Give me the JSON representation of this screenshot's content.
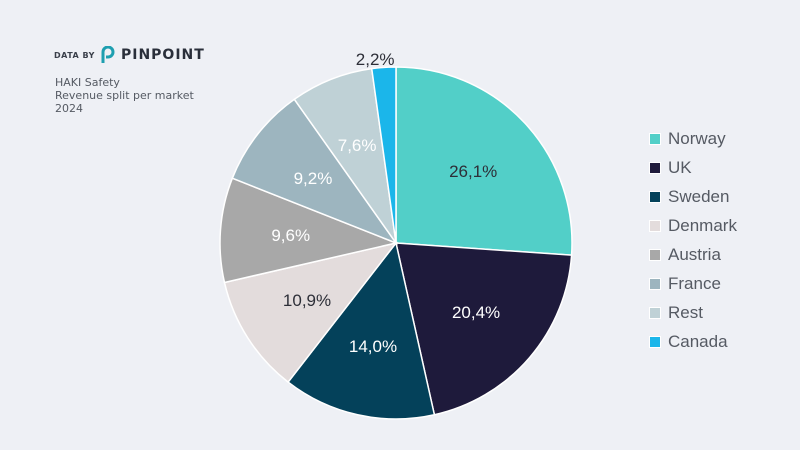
{
  "brand": {
    "prefix": "DATA BY",
    "name": "PINPOINT"
  },
  "header": {
    "lines": [
      "HAKI Safety",
      "Revenue split per market",
      "2024"
    ]
  },
  "chart_data": {
    "type": "pie",
    "start": "top",
    "direction": "clockwise",
    "legend_position": "right",
    "slices": [
      {
        "name": "Norway",
        "value": 26.1,
        "label": "26,1%",
        "color": "#52cfc8",
        "label_color": "#2d2f38"
      },
      {
        "name": "UK",
        "value": 20.4,
        "label": "20,4%",
        "color": "#1e1a3b",
        "label_color": "#ffffff"
      },
      {
        "name": "Sweden",
        "value": 14.0,
        "label": "14,0%",
        "color": "#04415a",
        "label_color": "#ffffff"
      },
      {
        "name": "Denmark",
        "value": 10.9,
        "label": "10,9%",
        "color": "#e3dcdc",
        "label_color": "#2d2f38"
      },
      {
        "name": "Austria",
        "value": 9.6,
        "label": "9,6%",
        "color": "#a8a8a8",
        "label_color": "#ffffff"
      },
      {
        "name": "France",
        "value": 9.2,
        "label": "9,2%",
        "color": "#9db5bf",
        "label_color": "#ffffff"
      },
      {
        "name": "Rest",
        "value": 7.6,
        "label": "7,6%",
        "color": "#bfd1d6",
        "label_color": "#ffffff"
      },
      {
        "name": "Canada",
        "value": 2.2,
        "label": "2,2%",
        "color": "#1bb6ea",
        "label_color": "#2d2f38",
        "label_outside": true
      }
    ]
  }
}
